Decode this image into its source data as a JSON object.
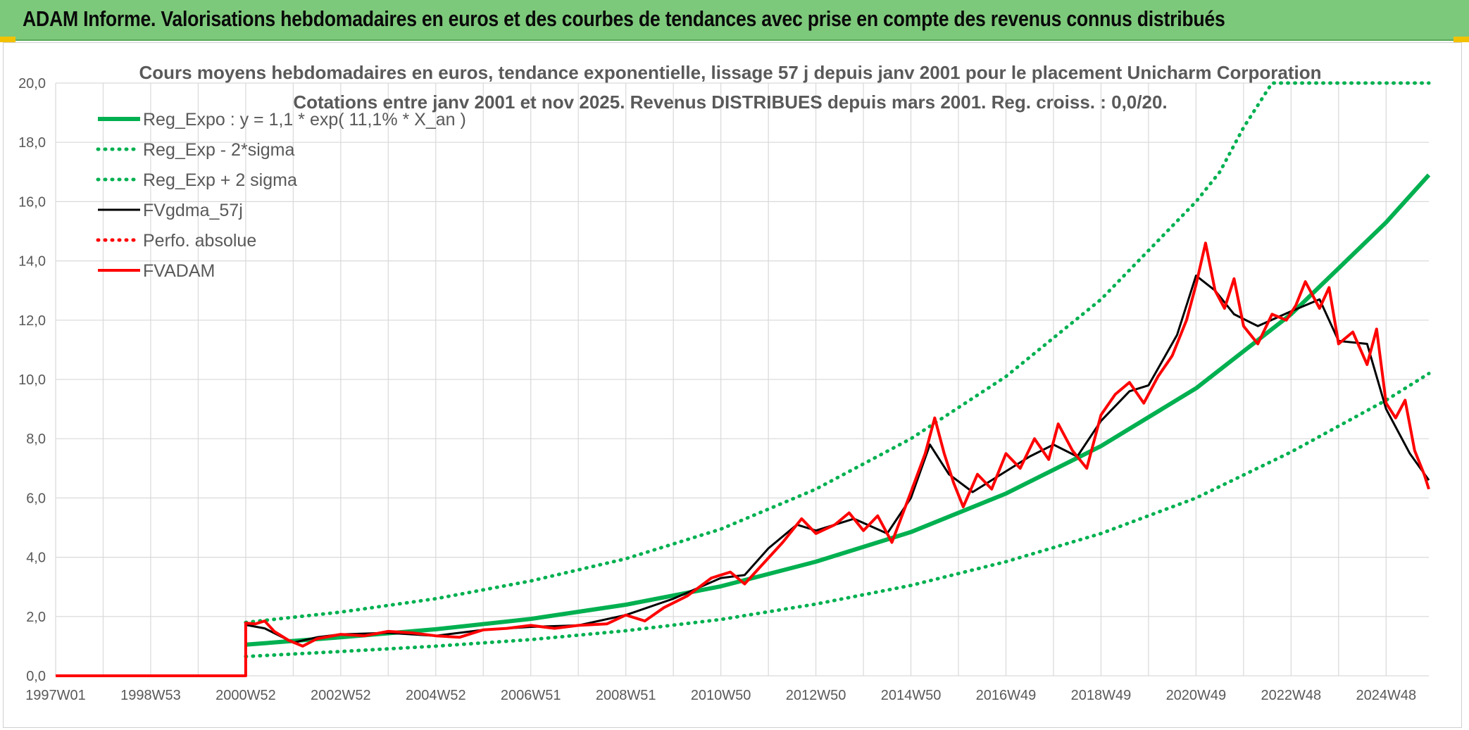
{
  "header": {
    "title": "ADAM Informe. Valorisations hebdomadaires en euros et des courbes de tendances avec prise en compte des revenus connus distribués"
  },
  "colors": {
    "banner": "#7dc97b",
    "regression": "#00b050",
    "fvgdma": "#000000",
    "fvadam": "#ff0000",
    "perfo": "#ff0000",
    "grid": "#d9d9d9",
    "text": "#595959"
  },
  "chart_data": {
    "type": "line",
    "title": "Cours moyens hebdomadaires en euros, tendance exponentielle, lissage 57 j depuis janv 2001 pour le placement Unicharm Corporation",
    "subtitle": "Cotations entre janv 2001 et nov 2025. Revenus DISTRIBUES depuis mars 2001. Reg. croiss. : 0,0/20.",
    "xlabel": "",
    "ylabel": "",
    "x_range": [
      1997.0,
      2025.9
    ],
    "ylim": [
      0,
      20
    ],
    "y_ticks": [
      "0,0",
      "2,0",
      "4,0",
      "6,0",
      "8,0",
      "10,0",
      "12,0",
      "14,0",
      "16,0",
      "18,0",
      "20,0"
    ],
    "x_ticks": [
      {
        "label": "1997W01",
        "x": 1997.0
      },
      {
        "label": "1998W53",
        "x": 1999.0
      },
      {
        "label": "2000W52",
        "x": 2001.0
      },
      {
        "label": "2002W52",
        "x": 2003.0
      },
      {
        "label": "2004W52",
        "x": 2005.0
      },
      {
        "label": "2006W51",
        "x": 2007.0
      },
      {
        "label": "2008W51",
        "x": 2009.0
      },
      {
        "label": "2010W50",
        "x": 2011.0
      },
      {
        "label": "2012W50",
        "x": 2013.0
      },
      {
        "label": "2014W50",
        "x": 2015.0
      },
      {
        "label": "2016W49",
        "x": 2017.0
      },
      {
        "label": "2018W49",
        "x": 2019.0
      },
      {
        "label": "2020W49",
        "x": 2021.0
      },
      {
        "label": "2022W48",
        "x": 2023.0
      },
      {
        "label": "2024W48",
        "x": 2025.0
      }
    ],
    "grid": true,
    "legend_position": "top-left",
    "series": [
      {
        "name": "Reg_Expo : y = 1,1 * exp( 11,1% *  X_an )",
        "style": "solid-thick",
        "color": "#00b050",
        "points": [
          [
            2001.0,
            1.05
          ],
          [
            2003.0,
            1.3
          ],
          [
            2005.0,
            1.57
          ],
          [
            2007.0,
            1.92
          ],
          [
            2009.0,
            2.4
          ],
          [
            2011.0,
            3.02
          ],
          [
            2013.0,
            3.85
          ],
          [
            2015.0,
            4.85
          ],
          [
            2017.0,
            6.15
          ],
          [
            2019.0,
            7.75
          ],
          [
            2021.0,
            9.7
          ],
          [
            2023.0,
            12.2
          ],
          [
            2025.0,
            15.3
          ],
          [
            2025.9,
            16.9
          ]
        ]
      },
      {
        "name": "Reg_Exp - 2*sigma",
        "style": "dotted",
        "color": "#00b050",
        "points": [
          [
            2001.0,
            0.65
          ],
          [
            2003.0,
            0.82
          ],
          [
            2005.0,
            1.0
          ],
          [
            2007.0,
            1.22
          ],
          [
            2009.0,
            1.52
          ],
          [
            2011.0,
            1.9
          ],
          [
            2013.0,
            2.42
          ],
          [
            2015.0,
            3.05
          ],
          [
            2017.0,
            3.85
          ],
          [
            2019.0,
            4.8
          ],
          [
            2021.0,
            6.0
          ],
          [
            2023.0,
            7.55
          ],
          [
            2025.0,
            9.3
          ],
          [
            2025.9,
            10.2
          ]
        ]
      },
      {
        "name": "Reg_Exp + 2 sigma",
        "style": "dotted",
        "color": "#00b050",
        "points": [
          [
            2001.0,
            1.8
          ],
          [
            2003.0,
            2.15
          ],
          [
            2005.0,
            2.6
          ],
          [
            2007.0,
            3.2
          ],
          [
            2009.0,
            3.95
          ],
          [
            2011.0,
            4.95
          ],
          [
            2013.0,
            6.3
          ],
          [
            2015.0,
            8.0
          ],
          [
            2017.0,
            10.1
          ],
          [
            2019.0,
            12.7
          ],
          [
            2021.0,
            16.0
          ],
          [
            2021.5,
            17.0
          ],
          [
            2022.0,
            18.5
          ],
          [
            2022.6,
            20.0
          ],
          [
            2025.9,
            20.0
          ]
        ]
      },
      {
        "name": "FVgdma_57j",
        "style": "solid",
        "color": "#000000",
        "points": [
          [
            2001.0,
            1.72
          ],
          [
            2001.4,
            1.6
          ],
          [
            2002.0,
            1.12
          ],
          [
            2002.5,
            1.3
          ],
          [
            2003.0,
            1.4
          ],
          [
            2004.0,
            1.45
          ],
          [
            2005.0,
            1.35
          ],
          [
            2006.0,
            1.55
          ],
          [
            2007.0,
            1.65
          ],
          [
            2008.0,
            1.7
          ],
          [
            2009.0,
            2.05
          ],
          [
            2010.0,
            2.6
          ],
          [
            2011.0,
            3.3
          ],
          [
            2011.5,
            3.4
          ],
          [
            2012.0,
            4.3
          ],
          [
            2012.6,
            5.1
          ],
          [
            2013.0,
            4.9
          ],
          [
            2013.8,
            5.3
          ],
          [
            2014.5,
            4.8
          ],
          [
            2015.0,
            6.0
          ],
          [
            2015.4,
            7.8
          ],
          [
            2015.8,
            6.8
          ],
          [
            2016.3,
            6.2
          ],
          [
            2017.0,
            6.9
          ],
          [
            2017.5,
            7.4
          ],
          [
            2018.0,
            7.8
          ],
          [
            2018.5,
            7.4
          ],
          [
            2019.0,
            8.6
          ],
          [
            2019.6,
            9.6
          ],
          [
            2020.0,
            9.8
          ],
          [
            2020.6,
            11.5
          ],
          [
            2021.0,
            13.5
          ],
          [
            2021.4,
            13.0
          ],
          [
            2021.8,
            12.2
          ],
          [
            2022.3,
            11.8
          ],
          [
            2023.0,
            12.3
          ],
          [
            2023.6,
            12.7
          ],
          [
            2024.0,
            11.3
          ],
          [
            2024.6,
            11.2
          ],
          [
            2025.0,
            9.0
          ],
          [
            2025.5,
            7.5
          ],
          [
            2025.9,
            6.6
          ]
        ]
      },
      {
        "name": "Perfo. absolue",
        "style": "dotted",
        "color": "#ff0000",
        "points": []
      },
      {
        "name": "FVADAM",
        "style": "solid-thick",
        "color": "#ff0000",
        "points": [
          [
            1997.0,
            0.0
          ],
          [
            2001.0,
            0.0
          ],
          [
            2001.0,
            1.78
          ],
          [
            2001.2,
            1.75
          ],
          [
            2001.4,
            1.85
          ],
          [
            2001.6,
            1.5
          ],
          [
            2001.9,
            1.2
          ],
          [
            2002.2,
            1.0
          ],
          [
            2002.5,
            1.25
          ],
          [
            2003.0,
            1.4
          ],
          [
            2003.5,
            1.35
          ],
          [
            2004.0,
            1.5
          ],
          [
            2004.5,
            1.45
          ],
          [
            2005.0,
            1.35
          ],
          [
            2005.5,
            1.3
          ],
          [
            2006.0,
            1.55
          ],
          [
            2006.5,
            1.6
          ],
          [
            2007.0,
            1.7
          ],
          [
            2007.5,
            1.6
          ],
          [
            2008.0,
            1.7
          ],
          [
            2008.6,
            1.75
          ],
          [
            2009.0,
            2.05
          ],
          [
            2009.4,
            1.85
          ],
          [
            2009.8,
            2.3
          ],
          [
            2010.3,
            2.7
          ],
          [
            2010.8,
            3.3
          ],
          [
            2011.2,
            3.5
          ],
          [
            2011.5,
            3.1
          ],
          [
            2011.9,
            3.8
          ],
          [
            2012.3,
            4.5
          ],
          [
            2012.7,
            5.3
          ],
          [
            2013.0,
            4.8
          ],
          [
            2013.4,
            5.1
          ],
          [
            2013.7,
            5.5
          ],
          [
            2014.0,
            4.9
          ],
          [
            2014.3,
            5.4
          ],
          [
            2014.6,
            4.5
          ],
          [
            2015.0,
            6.2
          ],
          [
            2015.3,
            7.5
          ],
          [
            2015.5,
            8.7
          ],
          [
            2015.7,
            7.5
          ],
          [
            2015.9,
            6.5
          ],
          [
            2016.1,
            5.7
          ],
          [
            2016.4,
            6.8
          ],
          [
            2016.7,
            6.3
          ],
          [
            2017.0,
            7.5
          ],
          [
            2017.3,
            7.0
          ],
          [
            2017.6,
            8.0
          ],
          [
            2017.9,
            7.3
          ],
          [
            2018.1,
            8.5
          ],
          [
            2018.4,
            7.6
          ],
          [
            2018.7,
            7.0
          ],
          [
            2019.0,
            8.8
          ],
          [
            2019.3,
            9.5
          ],
          [
            2019.6,
            9.9
          ],
          [
            2019.9,
            9.2
          ],
          [
            2020.2,
            10.1
          ],
          [
            2020.5,
            10.8
          ],
          [
            2020.8,
            12.0
          ],
          [
            2021.0,
            13.2
          ],
          [
            2021.2,
            14.6
          ],
          [
            2021.4,
            13.0
          ],
          [
            2021.6,
            12.4
          ],
          [
            2021.8,
            13.4
          ],
          [
            2022.0,
            11.8
          ],
          [
            2022.3,
            11.2
          ],
          [
            2022.6,
            12.2
          ],
          [
            2022.9,
            12.0
          ],
          [
            2023.1,
            12.5
          ],
          [
            2023.3,
            13.3
          ],
          [
            2023.6,
            12.4
          ],
          [
            2023.8,
            13.1
          ],
          [
            2024.0,
            11.2
          ],
          [
            2024.3,
            11.6
          ],
          [
            2024.6,
            10.5
          ],
          [
            2024.8,
            11.7
          ],
          [
            2025.0,
            9.2
          ],
          [
            2025.2,
            8.7
          ],
          [
            2025.4,
            9.3
          ],
          [
            2025.6,
            7.6
          ],
          [
            2025.8,
            6.8
          ],
          [
            2025.9,
            6.3
          ]
        ]
      }
    ]
  }
}
